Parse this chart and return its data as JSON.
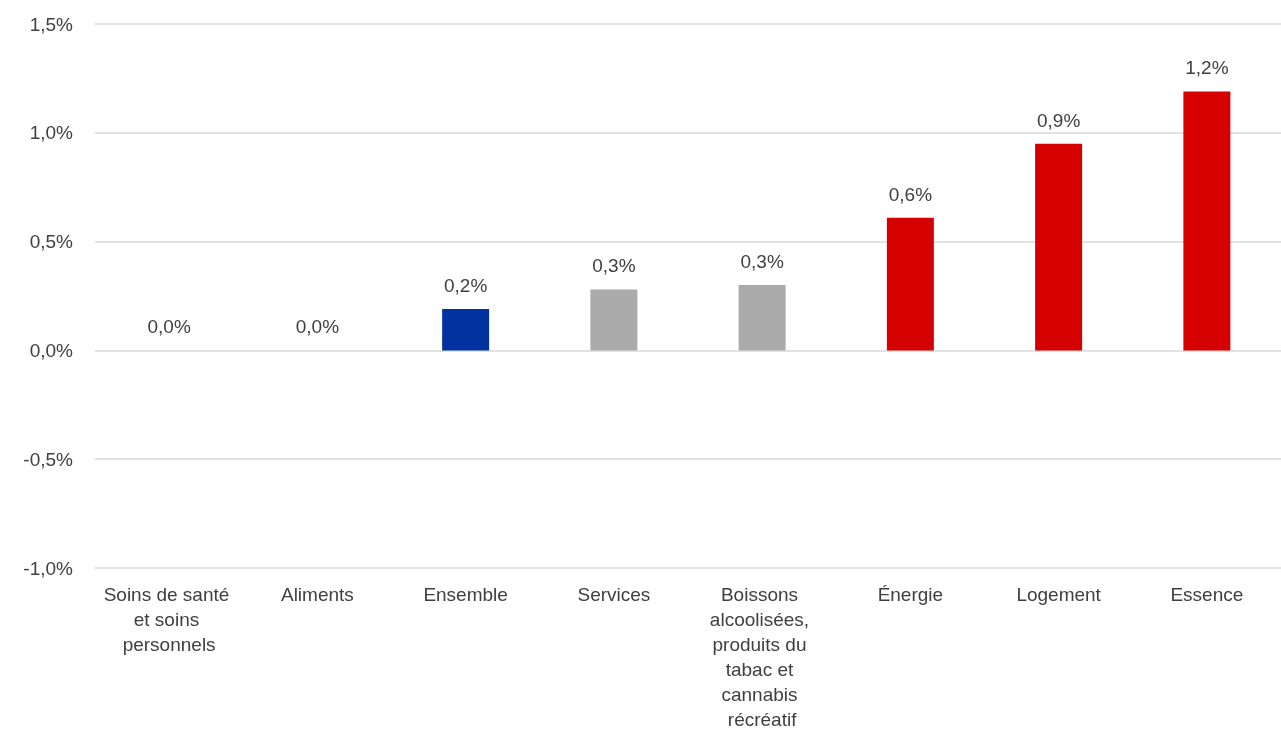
{
  "chart_data": {
    "type": "bar",
    "categories": [
      "Soins de santé et soins personnels",
      "Aliments",
      "Ensemble",
      "Services",
      "Boissons alcoolisées, produits du tabac et cannabis récréatif",
      "Énergie",
      "Logement",
      "Essence"
    ],
    "values": [
      0.0,
      0.0,
      0.19,
      0.28,
      0.3,
      0.61,
      0.95,
      1.19
    ],
    "value_labels": [
      "0,0%",
      "0,0%",
      "0,2%",
      "0,3%",
      "0,3%",
      "0,6%",
      "0,9%",
      "1,2%"
    ],
    "colors": [
      "#ababab",
      "#ababab",
      "#0033a0",
      "#ababab",
      "#ababab",
      "#d50000",
      "#d50000",
      "#d50000"
    ],
    "ylim": [
      -1.0,
      1.5
    ],
    "yticks": [
      {
        "value": -1.0,
        "label": "-1,0%"
      },
      {
        "value": -0.5,
        "label": "-0,5%"
      },
      {
        "value": 0.0,
        "label": "0,0%"
      },
      {
        "value": 0.5,
        "label": "0,5%"
      },
      {
        "value": 1.0,
        "label": "1,0%"
      },
      {
        "value": 1.5,
        "label": "1,5%"
      }
    ],
    "grid": true
  }
}
